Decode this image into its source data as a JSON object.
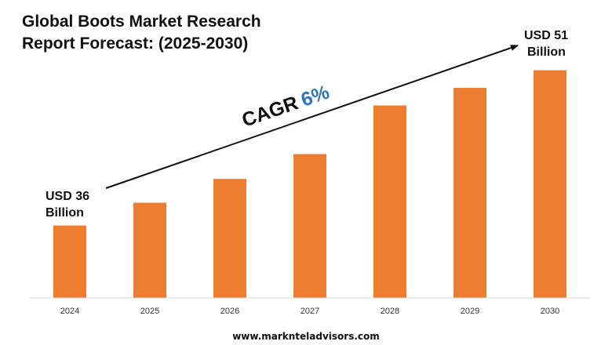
{
  "title": "Global Boots Market Research Report Forecast: (2025-2030)",
  "footer": {
    "url": "www.marknteladvisors.com"
  },
  "colors": {
    "bar": "#ED7D31",
    "cagr_value": "#2E75B6",
    "text": "#111111",
    "axis": "#D9D9D9"
  },
  "chart_data": {
    "type": "bar",
    "categories": [
      "2024",
      "2025",
      "2026",
      "2027",
      "2028",
      "2029",
      "2030"
    ],
    "values": [
      36,
      38.2,
      40.5,
      42.9,
      47.6,
      49.3,
      51
    ],
    "title": "Global Boots Market Research Report Forecast: (2025-2030)",
    "xlabel": "",
    "ylabel": "",
    "ylim": [
      29,
      54
    ],
    "grid": false,
    "annotations": {
      "start_line1": "USD 36",
      "start_line2": "Billion",
      "end_line1": "USD 51",
      "end_line2": "Billion",
      "cagr_label": "CAGR",
      "cagr_value": "6%"
    }
  }
}
